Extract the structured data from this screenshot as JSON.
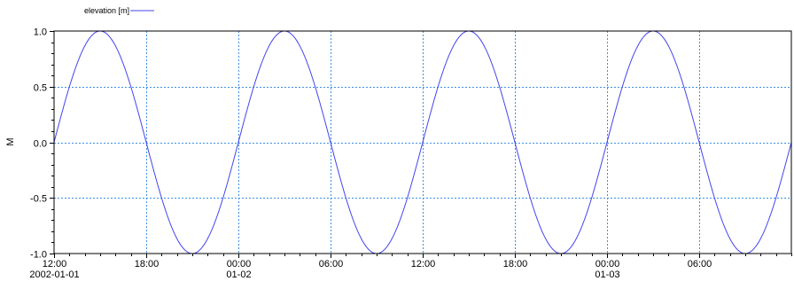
{
  "chart_data": {
    "type": "line",
    "title": "",
    "xlabel": "",
    "ylabel": "M",
    "x_ticks": [
      {
        "hours": 0,
        "line1": "12:00",
        "line2": "2002-01-01"
      },
      {
        "hours": 6,
        "line1": "18:00",
        "line2": ""
      },
      {
        "hours": 12,
        "line1": "00:00",
        "line2": "01-02"
      },
      {
        "hours": 18,
        "line1": "06:00",
        "line2": ""
      },
      {
        "hours": 24,
        "line1": "12:00",
        "line2": ""
      },
      {
        "hours": 30,
        "line1": "18:00",
        "line2": ""
      },
      {
        "hours": 36,
        "line1": "00:00",
        "line2": "01-03"
      },
      {
        "hours": 42,
        "line1": "06:00",
        "line2": ""
      }
    ],
    "xlim_hours": [
      0,
      48
    ],
    "y_ticks": [
      {
        "value": 1.0,
        "label": "1.0"
      },
      {
        "value": 0.5,
        "label": "0.5"
      },
      {
        "value": 0.0,
        "label": "0.0"
      },
      {
        "value": -0.5,
        "label": "-0.5"
      },
      {
        "value": -1.0,
        "label": "-1.0"
      }
    ],
    "ylim": [
      -1.0,
      1.0
    ],
    "grid": true,
    "legend_position": "top-left",
    "series": [
      {
        "name": "elevation [m]",
        "color": "#4444ee",
        "function": "sine",
        "amplitude": 1.0,
        "period_hours": 12,
        "phase_hours": 0
      }
    ],
    "colors": {
      "series": "#4444ee",
      "grid": "#3d8fe6",
      "axis": "#000000"
    }
  }
}
